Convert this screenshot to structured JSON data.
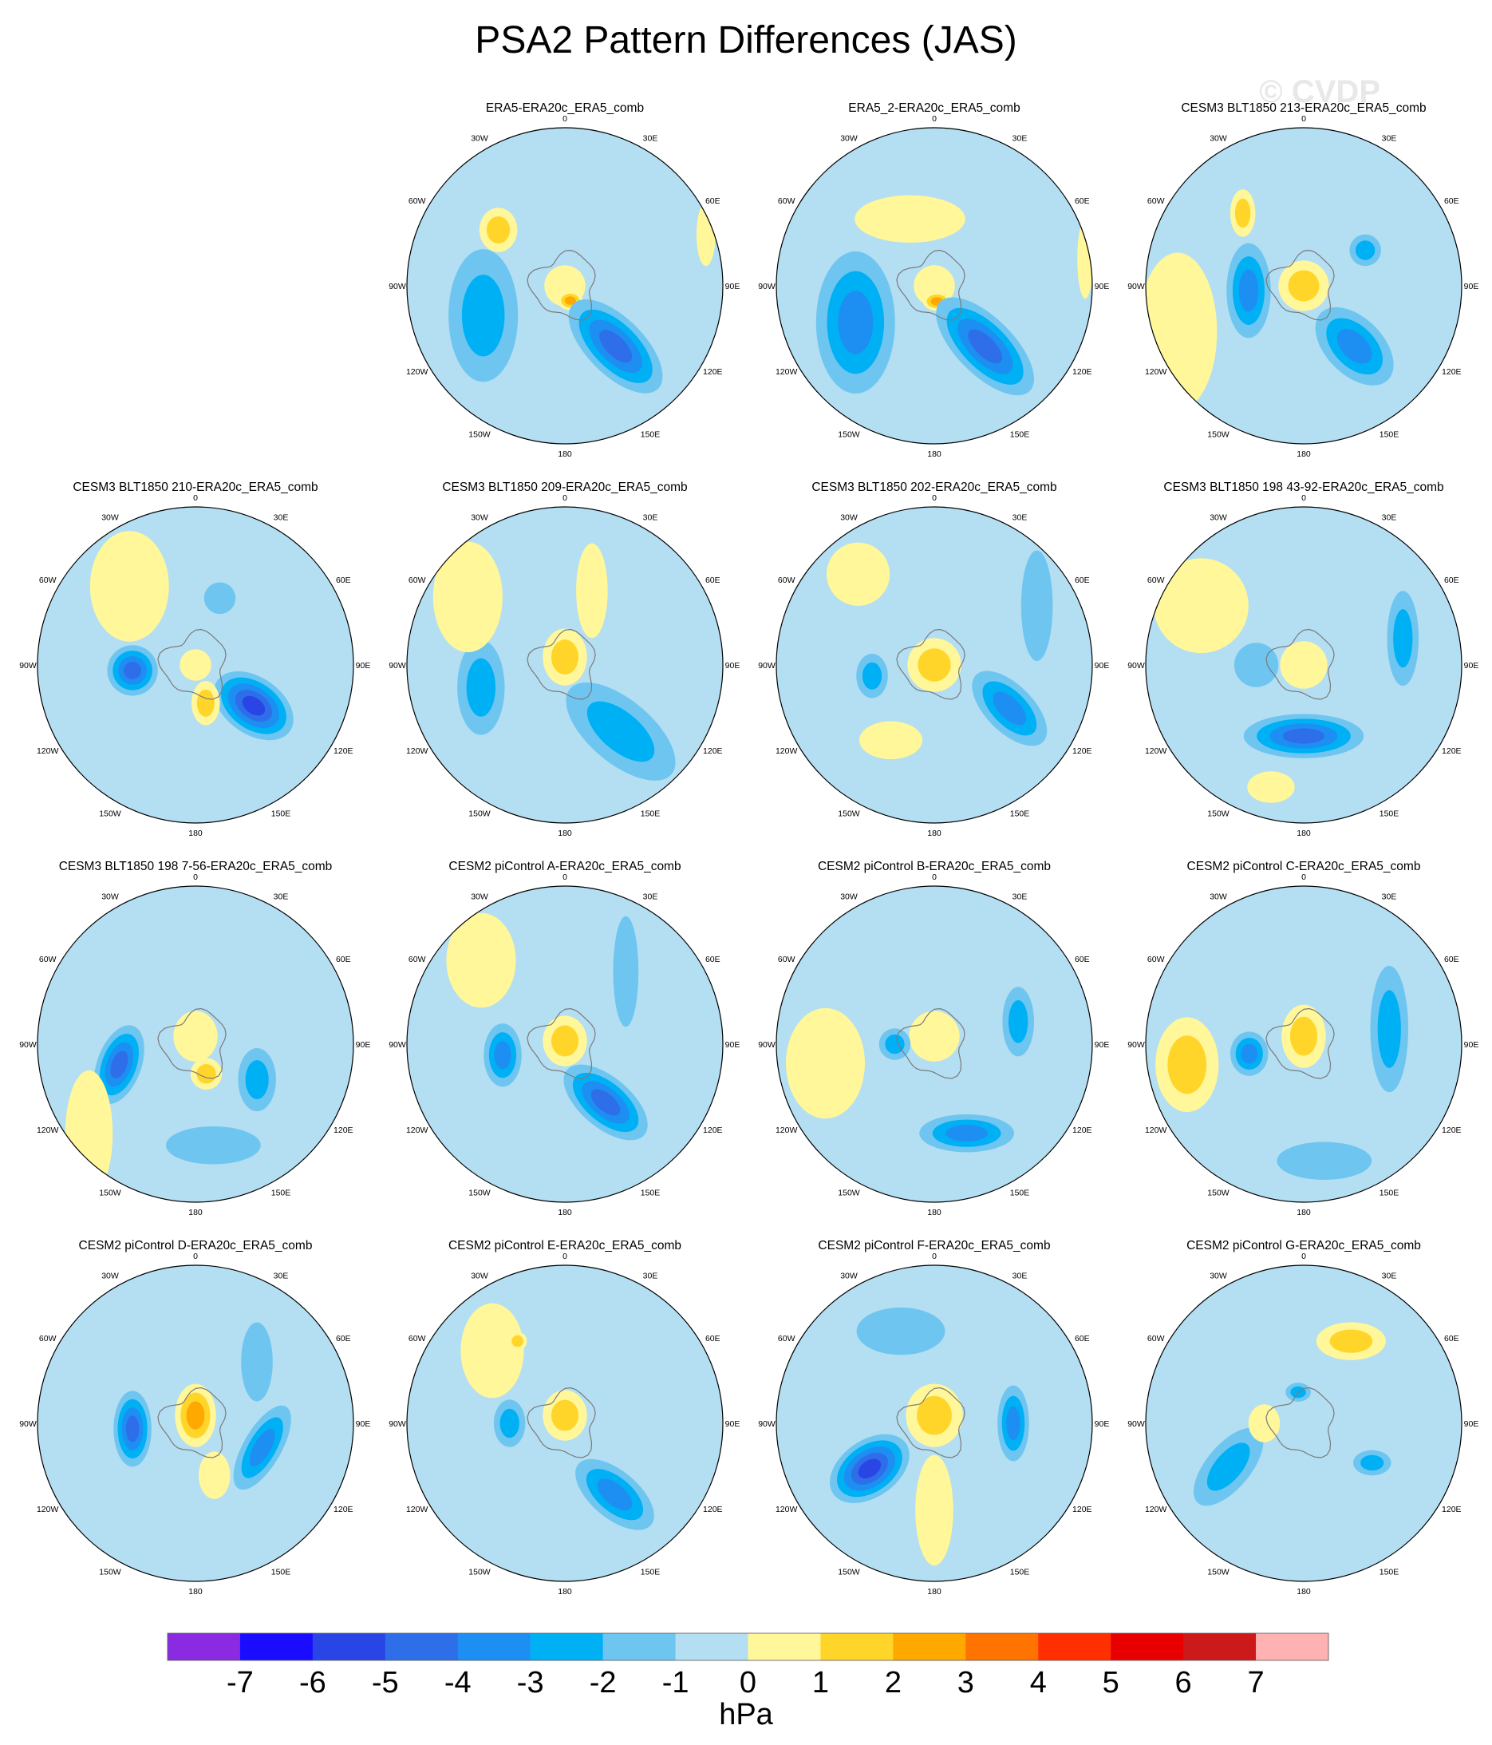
{
  "figure": {
    "title": "PSA2 Pattern Differences (JAS)",
    "watermark": "© CVDP"
  },
  "chart_data": {
    "type": "heatmap",
    "projection": "south-polar-stereographic",
    "unit": "hPa",
    "longitude_labels": [
      "0",
      "30E",
      "60E",
      "90E",
      "120E",
      "150E",
      "180",
      "150W",
      "120W",
      "90W",
      "60W",
      "30W"
    ],
    "colorbar": {
      "ticks": [
        "-7",
        "-6",
        "-5",
        "-4",
        "-3",
        "-2",
        "-1",
        "0",
        "1",
        "2",
        "3",
        "4",
        "5",
        "6",
        "7"
      ],
      "colors": [
        "#8a2be2",
        "#1a0dff",
        "#2a45e6",
        "#2f6ee9",
        "#1d8ff2",
        "#00b0f5",
        "#6ec6f0",
        "#b4def2",
        "#fff79a",
        "#ffd52a",
        "#ffa800",
        "#ff7300",
        "#ff2f00",
        "#e80000",
        "#cc1a1a",
        "#ffb2b2"
      ],
      "label": "hPa"
    },
    "panels": [
      {
        "title": "ERA5-ERA20c_ERA5_comb",
        "features": [
          {
            "lon": 0,
            "r": 0,
            "rx": 0.13,
            "ry": 0.13,
            "value": 0.8
          },
          {
            "lon": 160,
            "r": 0.1,
            "rx": 0.08,
            "ry": 0.06,
            "value": 2.2
          },
          {
            "lon": 140,
            "r": 0.5,
            "rx": 0.38,
            "ry": 0.18,
            "rot": 45,
            "value": -4.2
          },
          {
            "lon": -110,
            "r": 0.55,
            "rx": 0.22,
            "ry": 0.42,
            "value": -3.0
          },
          {
            "lon": -50,
            "r": 0.55,
            "rx": 0.12,
            "ry": 0.14,
            "value": 1.6
          },
          {
            "lon": 70,
            "r": 0.95,
            "rx": 0.06,
            "ry": 0.2,
            "value": 0.6
          }
        ]
      },
      {
        "title": "ERA5_2-ERA20c_ERA5_comb",
        "features": [
          {
            "lon": 0,
            "r": 0,
            "rx": 0.13,
            "ry": 0.13,
            "value": 0.8
          },
          {
            "lon": 170,
            "r": 0.1,
            "rx": 0.09,
            "ry": 0.06,
            "value": 2.8
          },
          {
            "lon": 140,
            "r": 0.5,
            "rx": 0.4,
            "ry": 0.18,
            "rot": 45,
            "value": -4.5
          },
          {
            "lon": -115,
            "r": 0.55,
            "rx": 0.25,
            "ry": 0.45,
            "value": -3.8
          },
          {
            "lon": -20,
            "r": 0.45,
            "rx": 0.35,
            "ry": 0.15,
            "value": 0.8
          },
          {
            "lon": 80,
            "r": 0.97,
            "rx": 0.05,
            "ry": 0.25,
            "value": 0.5
          }
        ]
      },
      {
        "title": "CESM3 BLT1850 213-ERA20c_ERA5_comb",
        "features": [
          {
            "lon": 0,
            "r": 0,
            "rx": 0.16,
            "ry": 0.16,
            "value": 1.8
          },
          {
            "lon": -95,
            "r": 0.35,
            "rx": 0.14,
            "ry": 0.3,
            "value": -4.0
          },
          {
            "lon": 140,
            "r": 0.5,
            "rx": 0.3,
            "ry": 0.18,
            "rot": 45,
            "value": -3.2
          },
          {
            "lon": 60,
            "r": 0.45,
            "rx": 0.1,
            "ry": 0.1,
            "value": -2.5
          },
          {
            "lon": -110,
            "r": 0.85,
            "rx": 0.25,
            "ry": 0.5,
            "value": 0.7
          },
          {
            "lon": -40,
            "r": 0.6,
            "rx": 0.08,
            "ry": 0.15,
            "value": 1.5
          }
        ]
      },
      {
        "title": "CESM3 BLT1850 210-ERA20c_ERA5_comb",
        "features": [
          {
            "lon": 0,
            "r": 0,
            "rx": 0.1,
            "ry": 0.1,
            "value": 0.6
          },
          {
            "lon": 125,
            "r": 0.45,
            "rx": 0.28,
            "ry": 0.18,
            "rot": 35,
            "value": -5.5
          },
          {
            "lon": -95,
            "r": 0.4,
            "rx": 0.16,
            "ry": 0.16,
            "value": -4.6
          },
          {
            "lon": 165,
            "r": 0.25,
            "rx": 0.09,
            "ry": 0.14,
            "value": 1.8
          },
          {
            "lon": -40,
            "r": 0.65,
            "rx": 0.25,
            "ry": 0.35,
            "value": 0.7
          },
          {
            "lon": 20,
            "r": 0.45,
            "rx": 0.1,
            "ry": 0.1,
            "value": -1.5
          }
        ]
      },
      {
        "title": "CESM3 BLT1850 209-ERA20c_ERA5_comb",
        "features": [
          {
            "lon": 0,
            "r": 0.05,
            "rx": 0.14,
            "ry": 0.18,
            "value": 1.7
          },
          {
            "lon": 140,
            "r": 0.55,
            "rx": 0.42,
            "ry": 0.2,
            "rot": 40,
            "value": -3.0
          },
          {
            "lon": -105,
            "r": 0.55,
            "rx": 0.15,
            "ry": 0.3,
            "value": -2.5
          },
          {
            "lon": 20,
            "r": 0.5,
            "rx": 0.1,
            "ry": 0.3,
            "value": 0.7
          },
          {
            "lon": -55,
            "r": 0.75,
            "rx": 0.22,
            "ry": 0.35,
            "value": 0.7
          }
        ]
      },
      {
        "title": "CESM3 BLT1850 202-ERA20c_ERA5_comb",
        "features": [
          {
            "lon": 0,
            "r": 0,
            "rx": 0.17,
            "ry": 0.17,
            "value": 1.2
          },
          {
            "lon": 120,
            "r": 0.55,
            "rx": 0.3,
            "ry": 0.15,
            "rot": 45,
            "value": -3.2
          },
          {
            "lon": -100,
            "r": 0.4,
            "rx": 0.1,
            "ry": 0.14,
            "value": -2.8
          },
          {
            "lon": 60,
            "r": 0.75,
            "rx": 0.1,
            "ry": 0.35,
            "value": -1.4
          },
          {
            "lon": -150,
            "r": 0.55,
            "rx": 0.2,
            "ry": 0.12,
            "value": 0.6
          },
          {
            "lon": -40,
            "r": 0.75,
            "rx": 0.2,
            "ry": 0.2,
            "value": 0.6
          }
        ]
      },
      {
        "title": "CESM3 BLT1850 198 43-92-ERA20c_ERA5_comb",
        "features": [
          {
            "lon": 0,
            "r": 0,
            "rx": 0.15,
            "ry": 0.15,
            "value": 0.7
          },
          {
            "lon": 180,
            "r": 0.45,
            "rx": 0.38,
            "ry": 0.14,
            "value": -4.2
          },
          {
            "lon": 75,
            "r": 0.65,
            "rx": 0.1,
            "ry": 0.3,
            "value": -2.5
          },
          {
            "lon": -90,
            "r": 0.3,
            "rx": 0.14,
            "ry": 0.14,
            "value": -1.4
          },
          {
            "lon": -60,
            "r": 0.75,
            "rx": 0.3,
            "ry": 0.3,
            "value": 0.6
          },
          {
            "lon": -165,
            "r": 0.8,
            "rx": 0.15,
            "ry": 0.1,
            "value": 0.6
          }
        ]
      },
      {
        "title": "CESM3 BLT1850 198 7-56-ERA20c_ERA5_comb",
        "features": [
          {
            "lon": 0,
            "r": 0.05,
            "rx": 0.14,
            "ry": 0.16,
            "value": 0.8
          },
          {
            "lon": -105,
            "r": 0.5,
            "rx": 0.14,
            "ry": 0.26,
            "rot": 20,
            "value": -4.3
          },
          {
            "lon": 120,
            "r": 0.45,
            "rx": 0.12,
            "ry": 0.2,
            "value": -2.4
          },
          {
            "lon": 160,
            "r": 0.2,
            "rx": 0.1,
            "ry": 0.1,
            "value": 1.8
          },
          {
            "lon": 170,
            "r": 0.65,
            "rx": 0.3,
            "ry": 0.12,
            "value": -1.5
          },
          {
            "lon": -130,
            "r": 0.88,
            "rx": 0.15,
            "ry": 0.4,
            "value": 0.7
          }
        ]
      },
      {
        "title": "CESM2 piControl A-ERA20c_ERA5_comb",
        "features": [
          {
            "lon": 0,
            "r": 0.02,
            "rx": 0.14,
            "ry": 0.16,
            "value": 1.9
          },
          {
            "lon": 145,
            "r": 0.45,
            "rx": 0.32,
            "ry": 0.16,
            "rot": 40,
            "value": -4.3
          },
          {
            "lon": -100,
            "r": 0.4,
            "rx": 0.12,
            "ry": 0.2,
            "value": -3.6
          },
          {
            "lon": 40,
            "r": 0.6,
            "rx": 0.08,
            "ry": 0.35,
            "value": -1.5
          },
          {
            "lon": -45,
            "r": 0.75,
            "rx": 0.22,
            "ry": 0.3,
            "value": 0.7
          }
        ]
      },
      {
        "title": "CESM2 piControl B-ERA20c_ERA5_comb",
        "features": [
          {
            "lon": 0,
            "r": 0.05,
            "rx": 0.16,
            "ry": 0.16,
            "value": 0.8
          },
          {
            "lon": 160,
            "r": 0.6,
            "rx": 0.3,
            "ry": 0.12,
            "value": -3.2
          },
          {
            "lon": 75,
            "r": 0.55,
            "rx": 0.1,
            "ry": 0.22,
            "value": -2.8
          },
          {
            "lon": -90,
            "r": 0.25,
            "rx": 0.1,
            "ry": 0.1,
            "value": -3.0
          },
          {
            "lon": -100,
            "r": 0.7,
            "rx": 0.25,
            "ry": 0.35,
            "value": 0.7
          }
        ]
      },
      {
        "title": "CESM2 piControl C-ERA20c_ERA5_comb",
        "features": [
          {
            "lon": 0,
            "r": 0.05,
            "rx": 0.14,
            "ry": 0.2,
            "value": 1.9
          },
          {
            "lon": 80,
            "r": 0.55,
            "rx": 0.12,
            "ry": 0.4,
            "value": -3.0
          },
          {
            "lon": -100,
            "r": 0.35,
            "rx": 0.12,
            "ry": 0.14,
            "value": -3.3
          },
          {
            "lon": -100,
            "r": 0.75,
            "rx": 0.2,
            "ry": 0.3,
            "value": 1.7
          },
          {
            "lon": 170,
            "r": 0.75,
            "rx": 0.3,
            "ry": 0.12,
            "value": -1.5
          }
        ]
      },
      {
        "title": "CESM2 piControl D-ERA20c_ERA5_comb",
        "features": [
          {
            "lon": 0,
            "r": 0.05,
            "rx": 0.13,
            "ry": 0.2,
            "value": 2.0
          },
          {
            "lon": -95,
            "r": 0.4,
            "rx": 0.12,
            "ry": 0.24,
            "value": -4.3
          },
          {
            "lon": 110,
            "r": 0.45,
            "rx": 0.12,
            "ry": 0.3,
            "rot": 30,
            "value": -3.2
          },
          {
            "lon": 160,
            "r": 0.35,
            "rx": 0.1,
            "ry": 0.15,
            "value": 0.7
          },
          {
            "lon": 45,
            "r": 0.55,
            "rx": 0.1,
            "ry": 0.25,
            "value": -1.4
          }
        ]
      },
      {
        "title": "CESM2 piControl E-ERA20c_ERA5_comb",
        "features": [
          {
            "lon": 0,
            "r": 0.05,
            "rx": 0.14,
            "ry": 0.16,
            "value": 1.6
          },
          {
            "lon": 145,
            "r": 0.55,
            "rx": 0.3,
            "ry": 0.15,
            "rot": 40,
            "value": -3.5
          },
          {
            "lon": -90,
            "r": 0.35,
            "rx": 0.1,
            "ry": 0.15,
            "value": -2.5
          },
          {
            "lon": -45,
            "r": 0.65,
            "rx": 0.2,
            "ry": 0.3,
            "value": 0.7
          },
          {
            "lon": -30,
            "r": 0.6,
            "rx": 0.06,
            "ry": 0.06,
            "value": 1.5
          }
        ]
      },
      {
        "title": "CESM2 piControl F-ERA20c_ERA5_comb",
        "features": [
          {
            "lon": 0,
            "r": 0.05,
            "rx": 0.18,
            "ry": 0.2,
            "value": 1.3
          },
          {
            "lon": -125,
            "r": 0.5,
            "rx": 0.28,
            "ry": 0.18,
            "rot": -35,
            "value": -5.5
          },
          {
            "lon": 90,
            "r": 0.5,
            "rx": 0.1,
            "ry": 0.24,
            "value": -3.5
          },
          {
            "lon": -20,
            "r": 0.62,
            "rx": 0.28,
            "ry": 0.15,
            "value": -1.5
          },
          {
            "lon": 180,
            "r": 0.55,
            "rx": 0.12,
            "ry": 0.35,
            "value": 0.7
          }
        ]
      },
      {
        "title": "CESM2 piControl G-ERA20c_ERA5_comb",
        "features": [
          {
            "lon": 0,
            "r": 0,
            "rx": 0.12,
            "ry": 0.12,
            "value": -0.5
          },
          {
            "lon": 30,
            "r": 0.6,
            "rx": 0.22,
            "ry": 0.12,
            "value": 1.8
          },
          {
            "lon": -120,
            "r": 0.55,
            "rx": 0.3,
            "ry": 0.14,
            "rot": -50,
            "value": -2.6
          },
          {
            "lon": 120,
            "r": 0.5,
            "rx": 0.12,
            "ry": 0.08,
            "value": -2.7
          },
          {
            "lon": -90,
            "r": 0.25,
            "rx": 0.1,
            "ry": 0.12,
            "value": 0.8
          },
          {
            "lon": -10,
            "r": 0.2,
            "rx": 0.08,
            "ry": 0.06,
            "value": -2.5
          }
        ]
      }
    ]
  }
}
